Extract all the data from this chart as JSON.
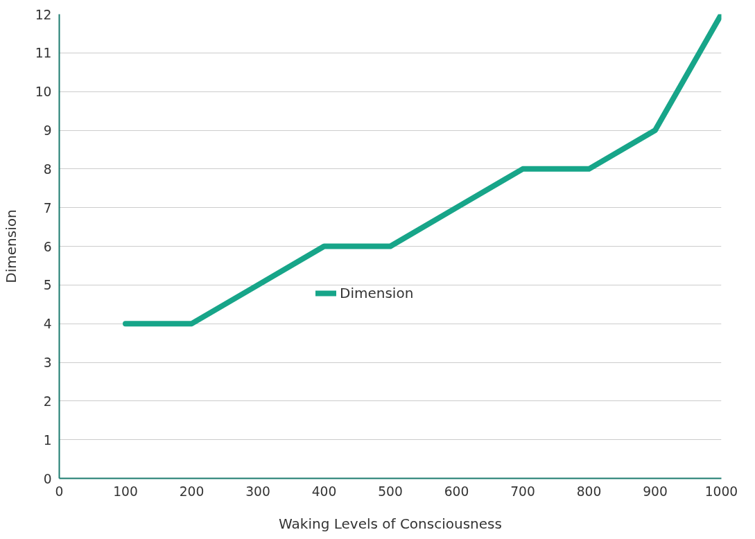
{
  "chart_data": {
    "type": "line",
    "xlabel": "Waking Levels of Consciousness",
    "ylabel": "Dimension",
    "x": [
      100,
      200,
      300,
      400,
      500,
      600,
      700,
      800,
      900,
      1000
    ],
    "series": [
      {
        "name": "Dimension",
        "color": "#17a589",
        "values": [
          4,
          4,
          5,
          6,
          6,
          7,
          8,
          8,
          9,
          12
        ]
      }
    ],
    "xlim": [
      0,
      1000
    ],
    "xticks": [
      0,
      100,
      200,
      300,
      400,
      500,
      600,
      700,
      800,
      900,
      1000
    ],
    "ylim": [
      0,
      12
    ],
    "yticks": [
      0,
      1,
      2,
      3,
      4,
      5,
      6,
      7,
      8,
      9,
      10,
      11,
      12
    ],
    "grid": "y",
    "legend": "center",
    "marker": "none",
    "line_style": "solid"
  }
}
